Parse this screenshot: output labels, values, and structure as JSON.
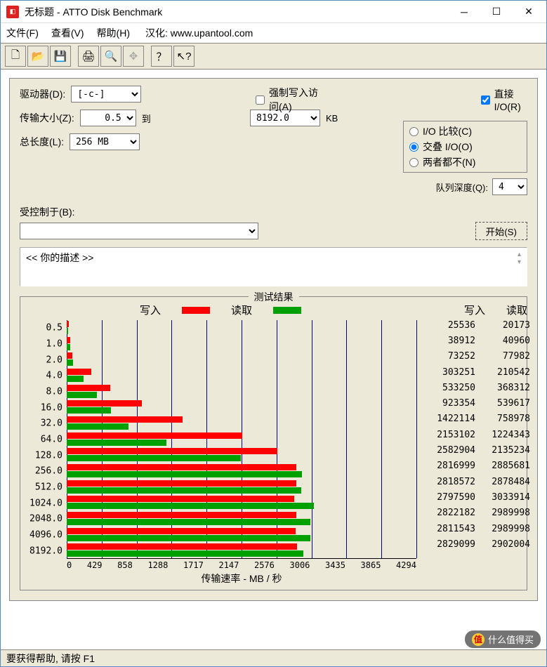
{
  "window": {
    "title": "无标题 - ATTO Disk Benchmark"
  },
  "menu": {
    "file": "文件(F)",
    "view": "查看(V)",
    "help": "帮助(H)",
    "credit": "汉化: www.upantool.com"
  },
  "toolbar_icons": [
    "new",
    "open",
    "save",
    "print",
    "preview",
    "move",
    "help",
    "pointer-help"
  ],
  "config": {
    "drive_label": "驱动器(D):",
    "drive_value": "[-c-]",
    "transfer_label": "传输大小(Z):",
    "transfer_from": "0.5",
    "transfer_to_label": "到",
    "transfer_to": "8192.0",
    "transfer_unit": "KB",
    "length_label": "总长度(L):",
    "length_value": "256 MB",
    "force_write": "强制写入访问(A)",
    "force_write_checked": false,
    "direct_io": "直接 I/O(R)",
    "direct_io_checked": true,
    "io_compare": "I/O 比较(C)",
    "overlap_io": "交叠 I/O(O)",
    "neither": "两者都不(N)",
    "radio_selected": "overlap",
    "queue_label": "队列深度(Q):",
    "queue_value": "4",
    "controlled_label": "受控制于(B):",
    "start_btn": "开始(S)",
    "desc_placeholder": "<<  你的描述   >>"
  },
  "results": {
    "fieldset_title": "测试结果",
    "write_label": "写入",
    "read_label": "读取",
    "xaxis_label": "传输速率 - MB / 秒",
    "xticks": [
      "0",
      "429",
      "858",
      "1288",
      "1717",
      "2147",
      "2576",
      "3006",
      "3435",
      "3865",
      "4294"
    ],
    "xmax": 4294,
    "write_color": "#ff0000",
    "read_color": "#00a000",
    "rows": [
      {
        "size": "0.5",
        "write": 25536,
        "read": 20173
      },
      {
        "size": "1.0",
        "write": 38912,
        "read": 40960
      },
      {
        "size": "2.0",
        "write": 73252,
        "read": 77982
      },
      {
        "size": "4.0",
        "write": 303251,
        "read": 210542
      },
      {
        "size": "8.0",
        "write": 533250,
        "read": 368312
      },
      {
        "size": "16.0",
        "write": 923354,
        "read": 539617
      },
      {
        "size": "32.0",
        "write": 1422114,
        "read": 758978
      },
      {
        "size": "64.0",
        "write": 2153102,
        "read": 1224343
      },
      {
        "size": "128.0",
        "write": 2582904,
        "read": 2135234
      },
      {
        "size": "256.0",
        "write": 2816999,
        "read": 2885681
      },
      {
        "size": "512.0",
        "write": 2818572,
        "read": 2878484
      },
      {
        "size": "1024.0",
        "write": 2797590,
        "read": 3033914
      },
      {
        "size": "2048.0",
        "write": 2822182,
        "read": 2989998
      },
      {
        "size": "4096.0",
        "write": 2811543,
        "read": 2989998
      },
      {
        "size": "8192.0",
        "write": 2829099,
        "read": 2902004
      }
    ]
  },
  "statusbar": "要获得帮助, 请按 F1",
  "watermark": "什么值得买"
}
